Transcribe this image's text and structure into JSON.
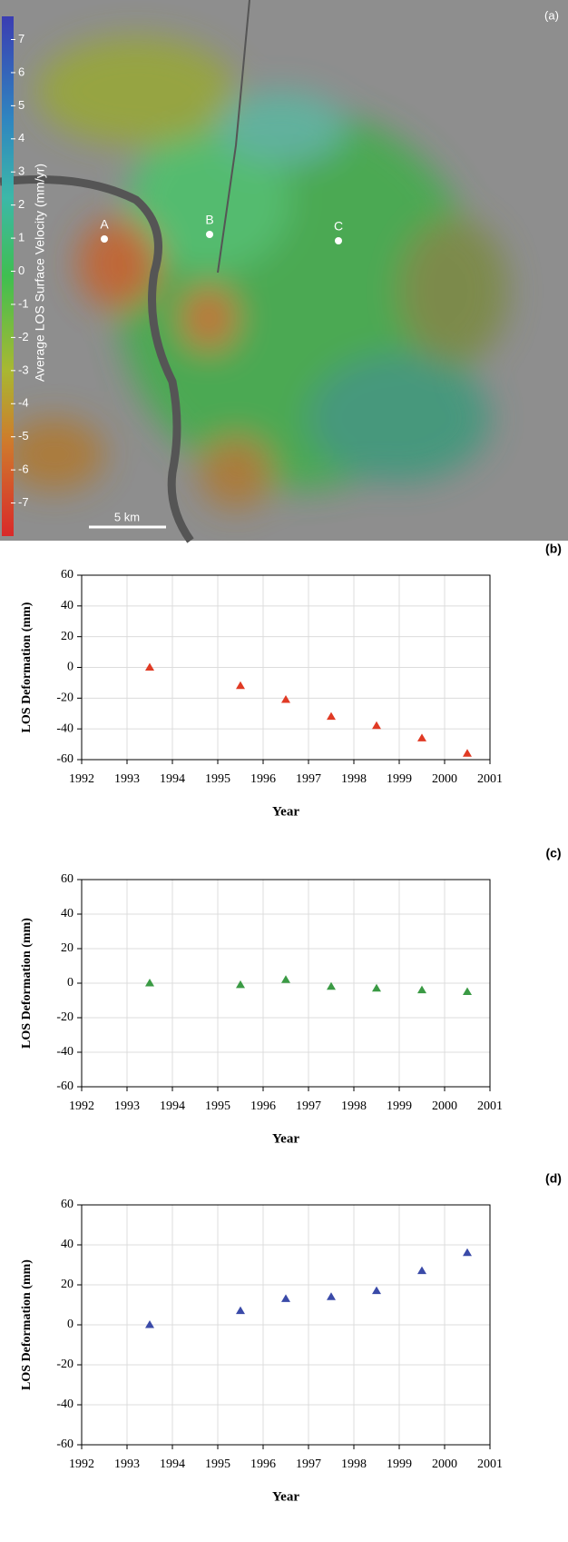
{
  "chart_data": [
    {
      "type": "map",
      "title": "(a)",
      "colorbar_label": "Average LOS Surface Velocity (mm/yr)",
      "colorbar_lim": [
        -8,
        7.7
      ],
      "colorbar_ticks": [
        7,
        6,
        5,
        4,
        3,
        2,
        1,
        0,
        -1,
        -2,
        -3,
        -4,
        -5,
        -6,
        -7
      ],
      "points": [
        "A",
        "B",
        "C"
      ],
      "scale_label": "5 km"
    },
    {
      "type": "scatter",
      "title": "(b)",
      "xlabel": "Year",
      "ylabel": "LOS Deformation (mm)",
      "x": [
        1993.5,
        1995.5,
        1996.5,
        1997.5,
        1998.5,
        1999.5,
        2000.5
      ],
      "values": [
        0,
        -12,
        -21,
        -32,
        -38,
        -46,
        -56
      ],
      "color": "#e03a24",
      "xlim": [
        1992,
        2001
      ],
      "xticks": [
        1992,
        1993,
        1994,
        1995,
        1996,
        1997,
        1998,
        1999,
        2000,
        2001
      ],
      "ylim": [
        -60,
        60
      ],
      "yticks": [
        60,
        40,
        20,
        0,
        -20,
        -40,
        -60
      ],
      "grid": true
    },
    {
      "type": "scatter",
      "title": "(c)",
      "xlabel": "Year",
      "ylabel": "LOS Deformation (mm)",
      "x": [
        1993.5,
        1995.5,
        1996.5,
        1997.5,
        1998.5,
        1999.5,
        2000.5
      ],
      "values": [
        0,
        -1,
        2,
        -2,
        -3,
        -4,
        -5
      ],
      "color": "#3a9a44",
      "xlim": [
        1992,
        2001
      ],
      "xticks": [
        1992,
        1993,
        1994,
        1995,
        1996,
        1997,
        1998,
        1999,
        2000,
        2001
      ],
      "ylim": [
        -60,
        60
      ],
      "yticks": [
        60,
        40,
        20,
        0,
        -20,
        -40,
        -60
      ],
      "grid": true
    },
    {
      "type": "scatter",
      "title": "(d)",
      "xlabel": "Year",
      "ylabel": "LOS Deformation (mm)",
      "x": [
        1993.5,
        1995.5,
        1996.5,
        1997.5,
        1998.5,
        1999.5,
        2000.5
      ],
      "values": [
        0,
        7,
        13,
        14,
        17,
        27,
        36
      ],
      "color": "#3a4aa8",
      "xlim": [
        1992,
        2001
      ],
      "xticks": [
        1992,
        1993,
        1994,
        1995,
        1996,
        1997,
        1998,
        1999,
        2000,
        2001
      ],
      "ylim": [
        -60,
        60
      ],
      "yticks": [
        60,
        40,
        20,
        0,
        -20,
        -40,
        -60
      ],
      "grid": true
    }
  ]
}
